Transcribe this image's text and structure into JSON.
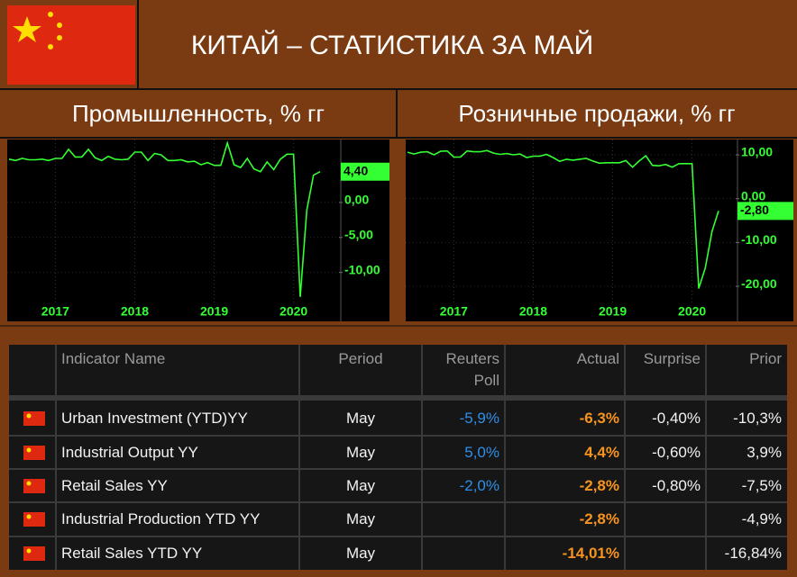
{
  "header": {
    "title": "КИТАЙ – СТАТИСТИКА ЗА МАЙ"
  },
  "chart_data": [
    {
      "type": "line",
      "title": "Промышленность, % гг",
      "categories": [
        null,
        null,
        null,
        null,
        null,
        null,
        null,
        "2017",
        null,
        null,
        null,
        null,
        null,
        null,
        null,
        null,
        null,
        null,
        null,
        "2018",
        null,
        null,
        null,
        null,
        null,
        null,
        null,
        null,
        null,
        null,
        null,
        "2019",
        null,
        null,
        null,
        null,
        null,
        null,
        null,
        null,
        null,
        null,
        null,
        "2020",
        null,
        null,
        null,
        null
      ],
      "values": [
        6.2,
        6.0,
        6.3,
        6.1,
        6.1,
        6.2,
        6.0,
        6.3,
        6.3,
        7.6,
        6.5,
        6.5,
        7.6,
        6.4,
        6.0,
        6.6,
        6.2,
        6.1,
        6.2,
        7.2,
        7.2,
        6.0,
        7.0,
        6.8,
        6.0,
        6.0,
        6.1,
        5.8,
        5.9,
        5.4,
        5.7,
        5.3,
        5.3,
        8.5,
        5.4,
        5.0,
        6.3,
        4.8,
        4.4,
        5.8,
        4.7,
        6.2,
        6.9,
        6.9,
        -13.5,
        -1.1,
        3.9,
        4.4
      ],
      "color": "#33ff33",
      "ylim": [
        -17,
        9
      ],
      "yticks": [
        {
          "value": 0,
          "label": "0,00"
        },
        {
          "value": -5,
          "label": "-5,00"
        },
        {
          "value": -10,
          "label": "-10,00"
        }
      ],
      "grid": true,
      "current_value": {
        "value": 4.4,
        "label": "4,40"
      }
    },
    {
      "type": "line",
      "title": "Розничные продажи, % гг",
      "categories": [
        null,
        null,
        null,
        null,
        null,
        null,
        null,
        "2017",
        null,
        null,
        null,
        null,
        null,
        null,
        null,
        null,
        null,
        null,
        null,
        "2018",
        null,
        null,
        null,
        null,
        null,
        null,
        null,
        null,
        null,
        null,
        null,
        "2019",
        null,
        null,
        null,
        null,
        null,
        null,
        null,
        null,
        null,
        null,
        null,
        "2020",
        null,
        null,
        null,
        null
      ],
      "values": [
        10.6,
        10.2,
        10.6,
        10.7,
        10.0,
        10.8,
        10.9,
        9.5,
        9.5,
        10.9,
        10.7,
        10.7,
        11.0,
        10.4,
        10.1,
        10.3,
        10.0,
        10.2,
        9.4,
        9.7,
        9.7,
        10.1,
        9.4,
        8.5,
        9.0,
        8.8,
        9.0,
        9.2,
        8.6,
        8.1,
        8.2,
        8.2,
        8.2,
        8.7,
        7.2,
        8.6,
        9.8,
        7.6,
        7.5,
        7.8,
        7.2,
        8.0,
        8.0,
        8.0,
        -20.5,
        -15.8,
        -7.5,
        -2.8
      ],
      "color": "#33ff33",
      "ylim": [
        -28,
        13.5
      ],
      "yticks": [
        {
          "value": 10,
          "label": "10,00"
        },
        {
          "value": 0,
          "label": "0,00"
        },
        {
          "value": -10,
          "label": "-10,00"
        },
        {
          "value": -20,
          "label": "-20,00"
        }
      ],
      "grid": true,
      "current_value": {
        "value": -2.8,
        "label": "-2,80"
      }
    }
  ],
  "table": {
    "columns": [
      "Indicator Name",
      "Period",
      "Reuters Poll",
      "Actual",
      "Surprise",
      "Prior"
    ],
    "rows": [
      [
        "Urban Investment (YTD)YY",
        "May",
        "-5,9%",
        "-6,3%",
        "-0,40%",
        "-10,3%"
      ],
      [
        "Industrial Output YY",
        "May",
        "5,0%",
        "4,4%",
        "-0,60%",
        "3,9%"
      ],
      [
        "Retail Sales YY",
        "May",
        "-2,0%",
        "-2,8%",
        "-0,80%",
        "-7,5%"
      ],
      [
        "Industrial Production YTD YY",
        "May",
        null,
        "-2,8%",
        null,
        "-4,9%"
      ],
      [
        "Retail Sales YTD YY",
        "May",
        null,
        "-14,01%",
        null,
        "-16,84%"
      ]
    ]
  }
}
